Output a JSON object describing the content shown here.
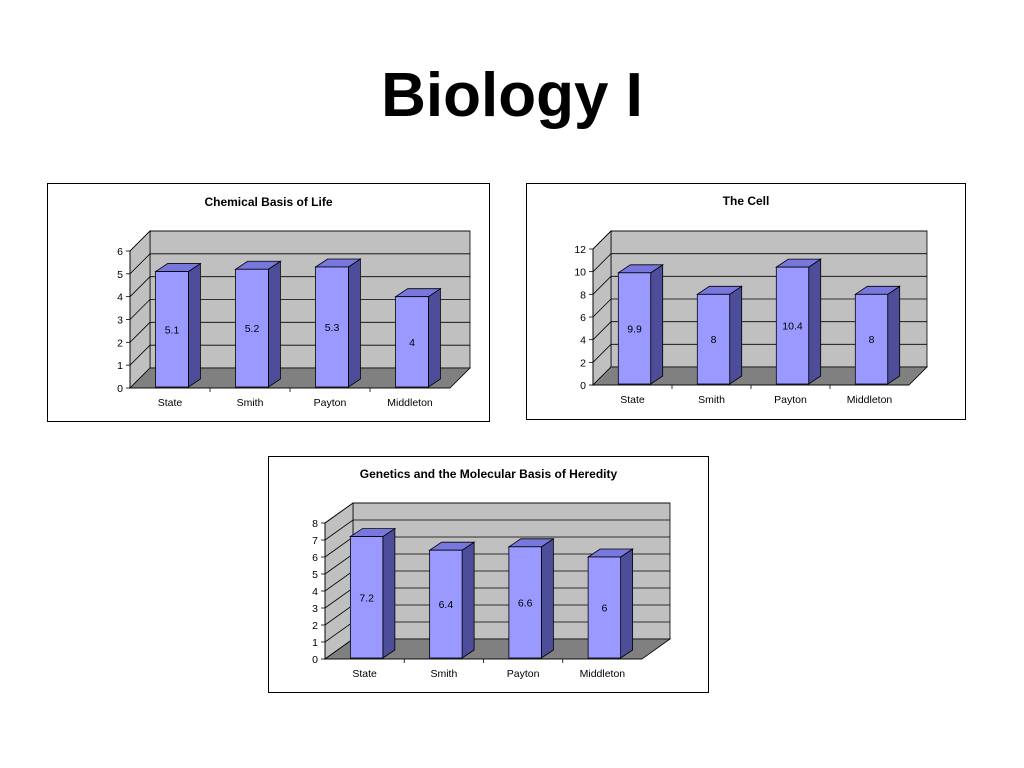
{
  "page": {
    "title": "Biology I"
  },
  "chart_data": [
    {
      "type": "bar",
      "title": "Chemical Basis of Life",
      "categories": [
        "State",
        "Smith",
        "Payton",
        "Middleton"
      ],
      "values": [
        5.1,
        5.2,
        5.3,
        4
      ],
      "data_labels": [
        "5.1",
        "5.2",
        "5.3",
        "4"
      ],
      "ylim": [
        0,
        6
      ],
      "yticks": [
        0,
        1,
        2,
        3,
        4,
        5,
        6
      ],
      "grid": true,
      "style": "3d-column",
      "colors": {
        "bar": "#9999ff",
        "bar_side": "#4d4d99",
        "bar_top": "#7777dd",
        "wall": "#c0c0c0",
        "floor": "#808080"
      }
    },
    {
      "type": "bar",
      "title": "The Cell",
      "categories": [
        "State",
        "Smith",
        "Payton",
        "Middleton"
      ],
      "values": [
        9.9,
        8,
        10.4,
        8
      ],
      "data_labels": [
        "9.9",
        "8",
        "10.4",
        "8"
      ],
      "ylim": [
        0,
        12
      ],
      "yticks": [
        0,
        2,
        4,
        6,
        8,
        10,
        12
      ],
      "grid": true,
      "style": "3d-column",
      "colors": {
        "bar": "#9999ff",
        "bar_side": "#4d4d99",
        "bar_top": "#7777dd",
        "wall": "#c0c0c0",
        "floor": "#808080"
      }
    },
    {
      "type": "bar",
      "title": "Genetics and the Molecular Basis of Heredity",
      "categories": [
        "State",
        "Smith",
        "Payton",
        "Middleton"
      ],
      "values": [
        7.2,
        6.4,
        6.6,
        6
      ],
      "data_labels": [
        "7.2",
        "6.4",
        "6.6",
        "6"
      ],
      "ylim": [
        0,
        8
      ],
      "yticks": [
        0,
        1,
        2,
        3,
        4,
        5,
        6,
        7,
        8
      ],
      "grid": true,
      "style": "3d-column",
      "colors": {
        "bar": "#9999ff",
        "bar_side": "#4d4d99",
        "bar_top": "#7777dd",
        "wall": "#c0c0c0",
        "floor": "#808080"
      }
    }
  ]
}
